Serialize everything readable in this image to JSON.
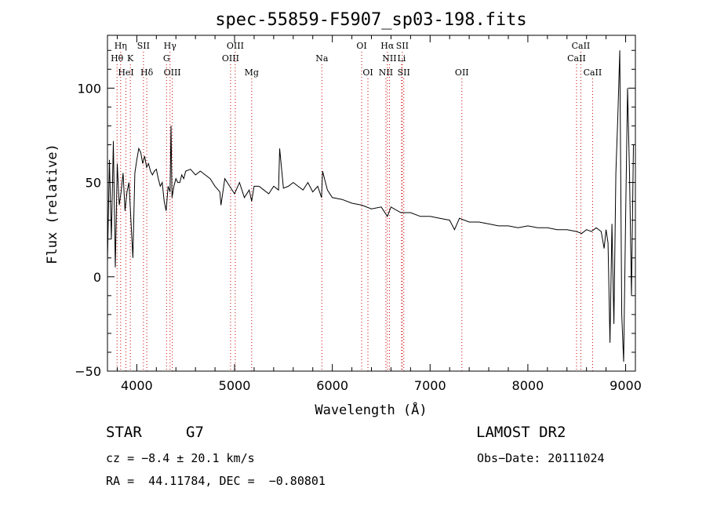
{
  "chart_data": {
    "type": "line",
    "title": "spec-55859-F5907_sp03-198.fits",
    "xlabel": "Wavelength (Å)",
    "ylabel": "Flux (relative)",
    "xlim": [
      3700,
      9100
    ],
    "ylim": [
      -50,
      128
    ],
    "x_ticks": [
      4000,
      5000,
      6000,
      7000,
      8000,
      9000
    ],
    "y_ticks": [
      -50,
      0,
      50,
      100
    ],
    "grid": false,
    "series": [
      {
        "color": "#000000",
        "x": [
          3700,
          3720,
          3740,
          3760,
          3780,
          3800,
          3820,
          3840,
          3860,
          3880,
          3900,
          3920,
          3940,
          3960,
          3980,
          4000,
          4020,
          4040,
          4060,
          4080,
          4100,
          4120,
          4140,
          4160,
          4180,
          4200,
          4220,
          4240,
          4260,
          4280,
          4300,
          4320,
          4340,
          4350,
          4360,
          4380,
          4400,
          4420,
          4440,
          4460,
          4480,
          4500,
          4550,
          4600,
          4650,
          4700,
          4750,
          4800,
          4850,
          4861,
          4900,
          4950,
          5000,
          5050,
          5100,
          5150,
          5175,
          5200,
          5250,
          5300,
          5350,
          5400,
          5450,
          5461,
          5500,
          5550,
          5600,
          5650,
          5700,
          5750,
          5800,
          5850,
          5890,
          5900,
          5950,
          6000,
          6100,
          6200,
          6300,
          6400,
          6500,
          6563,
          6600,
          6700,
          6800,
          6900,
          7000,
          7100,
          7200,
          7250,
          7300,
          7400,
          7500,
          7600,
          7700,
          7800,
          7900,
          8000,
          8100,
          8200,
          8300,
          8400,
          8500,
          8550,
          8600,
          8650,
          8700,
          8750,
          8780,
          8800,
          8820,
          8840,
          8860,
          8880,
          8900,
          8920,
          8940,
          8960,
          8980,
          9000,
          9020,
          9040,
          9060,
          9080
        ],
        "values": [
          8,
          62,
          20,
          72,
          5,
          60,
          38,
          45,
          55,
          35,
          45,
          50,
          30,
          10,
          55,
          62,
          68,
          66,
          60,
          64,
          58,
          60,
          56,
          54,
          56,
          57,
          52,
          48,
          50,
          40,
          35,
          48,
          45,
          80,
          42,
          48,
          52,
          50,
          50,
          54,
          52,
          56,
          57,
          54,
          56,
          54,
          52,
          48,
          45,
          38,
          52,
          48,
          44,
          50,
          42,
          46,
          40,
          48,
          48,
          46,
          44,
          48,
          46,
          68,
          47,
          48,
          50,
          48,
          46,
          50,
          45,
          48,
          42,
          56,
          46,
          42,
          41,
          39,
          38,
          36,
          37,
          32,
          37,
          34,
          34,
          32,
          32,
          31,
          30,
          25,
          31,
          29,
          29,
          28,
          27,
          27,
          26,
          27,
          26,
          26,
          25,
          25,
          24,
          23,
          25,
          24,
          26,
          24,
          15,
          25,
          18,
          -35,
          28,
          -25,
          55,
          85,
          120,
          -20,
          -45,
          30,
          100,
          55,
          -10,
          70
        ]
      }
    ],
    "line_markers": {
      "row1": [
        {
          "label": "Hη",
          "x": 3835
        },
        {
          "label": "SII",
          "x": 4068
        },
        {
          "label": "Hγ",
          "x": 4340
        },
        {
          "label": "OIII",
          "x": 5007
        },
        {
          "label": "OI",
          "x": 6300
        },
        {
          "label": "Hα",
          "x": 6563
        },
        {
          "label": "SII",
          "x": 6716
        },
        {
          "label": "CaII",
          "x": 8542
        }
      ],
      "row2": [
        {
          "label": "Hθ",
          "x": 3798
        },
        {
          "label": "K",
          "x": 3934
        },
        {
          "label": "G",
          "x": 4304
        },
        {
          "label": "OIII",
          "x": 4959
        },
        {
          "label": "Na",
          "x": 5893
        },
        {
          "label": "NII",
          "x": 6584
        },
        {
          "label": "Li",
          "x": 6708
        },
        {
          "label": "CaII",
          "x": 8498
        }
      ],
      "row3": [
        {
          "label": "HeI",
          "x": 3889
        },
        {
          "label": "Hδ",
          "x": 4102
        },
        {
          "label": "OIII",
          "x": 4363
        },
        {
          "label": "Mg",
          "x": 5175
        },
        {
          "label": "OI",
          "x": 6364
        },
        {
          "label": "NII",
          "x": 6548
        },
        {
          "label": "SII",
          "x": 6731
        },
        {
          "label": "OII",
          "x": 7325
        },
        {
          "label": "CaII",
          "x": 8662
        }
      ]
    },
    "line_color": "#cc0000"
  },
  "info": {
    "object_type": "STAR",
    "subclass": "G7",
    "survey": "LAMOST DR2",
    "cz_text": "cz = −8.4 ± 20.1 km/s",
    "obs_date_text": "Obs−Date: 20111024",
    "radec_text": "RA =  44.11784, DEC =  −0.80801"
  }
}
